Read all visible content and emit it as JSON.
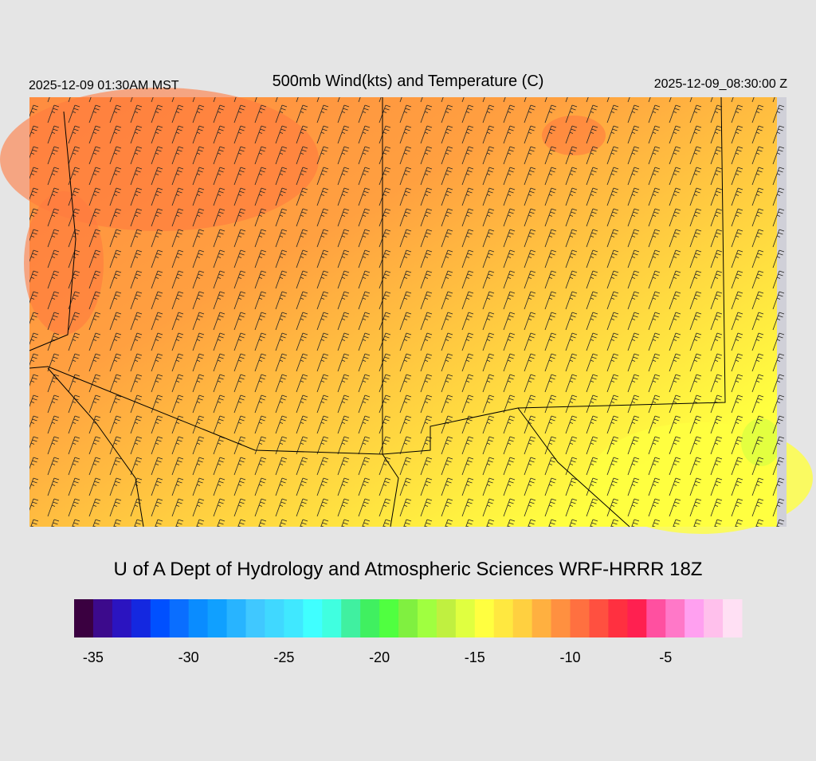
{
  "header": {
    "left": "2025-12-09 01:30AM MST",
    "title": "500mb Wind(kts) and Temperature (C)",
    "right": "2025-12-09_08:30:00 Z"
  },
  "credit": "U of A Dept of Hydrology and Atmospheric Sciences WRF-HRRR 18Z",
  "colorbar": {
    "range": [
      -36,
      -1
    ],
    "colors": [
      "#3a0040",
      "#3c0a8c",
      "#2b14c0",
      "#1428e0",
      "#0050ff",
      "#0a6eff",
      "#0a8cff",
      "#10a0ff",
      "#28b4ff",
      "#40c8ff",
      "#40d8ff",
      "#40e8ff",
      "#40ffff",
      "#40ffe0",
      "#40f0a0",
      "#40f060",
      "#50ff40",
      "#80f040",
      "#a0ff40",
      "#c0f040",
      "#e0ff40",
      "#ffff40",
      "#ffe840",
      "#ffd040",
      "#ffb040",
      "#ff9040",
      "#ff7040",
      "#ff5040",
      "#ff3040",
      "#ff2050",
      "#ff50a0",
      "#ff78c8",
      "#ffa0f0",
      "#ffc0ec",
      "#ffe0f4"
    ],
    "ticks": [
      -35,
      -30,
      -25,
      -20,
      -15,
      -10,
      -5
    ]
  }
}
